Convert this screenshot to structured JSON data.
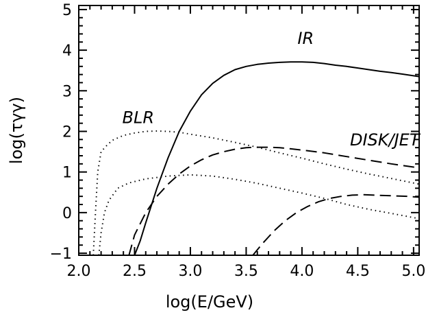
{
  "chart_data": {
    "type": "line",
    "title": "",
    "xlabel": "log(E/GeV)",
    "ylabel": "log(τγγ)",
    "xlim": [
      2.0,
      5.05
    ],
    "ylim": [
      -1.05,
      5.1
    ],
    "x_ticks": [
      "2.0",
      "2.5",
      "3.0",
      "3.5",
      "4.0",
      "4.5",
      "5.0"
    ],
    "y_ticks": [
      "−1",
      "0",
      "1",
      "2",
      "3",
      "4",
      "5"
    ],
    "grid": false,
    "annotations": [
      {
        "text": "IR",
        "x": 3.96,
        "y": 4.15
      },
      {
        "text": "BLR",
        "x": 2.39,
        "y": 2.2
      },
      {
        "text": "DISK/JET",
        "x": 4.43,
        "y": 1.65
      }
    ],
    "series": [
      {
        "style": "solid",
        "points": [
          [
            2.5,
            -1.05
          ],
          [
            2.55,
            -0.7
          ],
          [
            2.6,
            -0.25
          ],
          [
            2.7,
            0.6
          ],
          [
            2.8,
            1.35
          ],
          [
            2.9,
            2.0
          ],
          [
            3.0,
            2.5
          ],
          [
            3.1,
            2.9
          ],
          [
            3.2,
            3.18
          ],
          [
            3.3,
            3.38
          ],
          [
            3.4,
            3.52
          ],
          [
            3.5,
            3.6
          ],
          [
            3.6,
            3.65
          ],
          [
            3.7,
            3.68
          ],
          [
            3.8,
            3.7
          ],
          [
            3.9,
            3.71
          ],
          [
            4.0,
            3.71
          ],
          [
            4.1,
            3.7
          ],
          [
            4.2,
            3.67
          ],
          [
            4.3,
            3.63
          ],
          [
            4.4,
            3.6
          ],
          [
            4.5,
            3.56
          ],
          [
            4.6,
            3.52
          ],
          [
            4.7,
            3.48
          ],
          [
            4.8,
            3.45
          ],
          [
            4.9,
            3.41
          ],
          [
            5.05,
            3.35
          ]
        ]
      },
      {
        "style": "dotted",
        "points": [
          [
            2.13,
            -1.05
          ],
          [
            2.15,
            0.0
          ],
          [
            2.17,
            1.0
          ],
          [
            2.2,
            1.5
          ],
          [
            2.25,
            1.65
          ],
          [
            2.3,
            1.78
          ],
          [
            2.4,
            1.9
          ],
          [
            2.5,
            1.96
          ],
          [
            2.6,
            2.0
          ],
          [
            2.7,
            2.01
          ],
          [
            2.8,
            2.0
          ],
          [
            2.9,
            1.98
          ],
          [
            3.0,
            1.93
          ],
          [
            3.2,
            1.84
          ],
          [
            3.4,
            1.73
          ],
          [
            3.6,
            1.61
          ],
          [
            3.8,
            1.47
          ],
          [
            4.0,
            1.34
          ],
          [
            4.2,
            1.2
          ],
          [
            4.4,
            1.07
          ],
          [
            4.6,
            0.95
          ],
          [
            4.8,
            0.84
          ],
          [
            5.05,
            0.7
          ]
        ]
      },
      {
        "style": "dotted",
        "points": [
          [
            2.18,
            -1.05
          ],
          [
            2.2,
            -0.5
          ],
          [
            2.23,
            0.0
          ],
          [
            2.27,
            0.3
          ],
          [
            2.35,
            0.6
          ],
          [
            2.45,
            0.73
          ],
          [
            2.6,
            0.83
          ],
          [
            2.8,
            0.9
          ],
          [
            3.0,
            0.93
          ],
          [
            3.2,
            0.9
          ],
          [
            3.4,
            0.82
          ],
          [
            3.6,
            0.72
          ],
          [
            3.8,
            0.6
          ],
          [
            4.0,
            0.48
          ],
          [
            4.2,
            0.35
          ],
          [
            4.4,
            0.2
          ],
          [
            4.6,
            0.08
          ],
          [
            4.8,
            -0.02
          ],
          [
            5.05,
            -0.15
          ]
        ]
      },
      {
        "style": "dashed",
        "points": [
          [
            2.45,
            -1.05
          ],
          [
            2.5,
            -0.55
          ],
          [
            2.6,
            0.0
          ],
          [
            2.7,
            0.4
          ],
          [
            2.8,
            0.7
          ],
          [
            2.9,
            0.95
          ],
          [
            3.0,
            1.15
          ],
          [
            3.1,
            1.3
          ],
          [
            3.2,
            1.42
          ],
          [
            3.3,
            1.5
          ],
          [
            3.4,
            1.56
          ],
          [
            3.5,
            1.6
          ],
          [
            3.6,
            1.61
          ],
          [
            3.7,
            1.61
          ],
          [
            3.8,
            1.6
          ],
          [
            3.9,
            1.57
          ],
          [
            4.0,
            1.54
          ],
          [
            4.2,
            1.47
          ],
          [
            4.4,
            1.38
          ],
          [
            4.6,
            1.29
          ],
          [
            4.8,
            1.2
          ],
          [
            5.05,
            1.1
          ]
        ]
      },
      {
        "style": "dashed",
        "points": [
          [
            3.56,
            -1.05
          ],
          [
            3.65,
            -0.75
          ],
          [
            3.75,
            -0.45
          ],
          [
            3.85,
            -0.2
          ],
          [
            3.95,
            0.0
          ],
          [
            4.05,
            0.15
          ],
          [
            4.15,
            0.27
          ],
          [
            4.25,
            0.35
          ],
          [
            4.35,
            0.4
          ],
          [
            4.45,
            0.43
          ],
          [
            4.55,
            0.44
          ],
          [
            4.65,
            0.43
          ],
          [
            4.75,
            0.42
          ],
          [
            4.85,
            0.41
          ],
          [
            4.95,
            0.4
          ],
          [
            5.05,
            0.38
          ]
        ]
      }
    ]
  }
}
